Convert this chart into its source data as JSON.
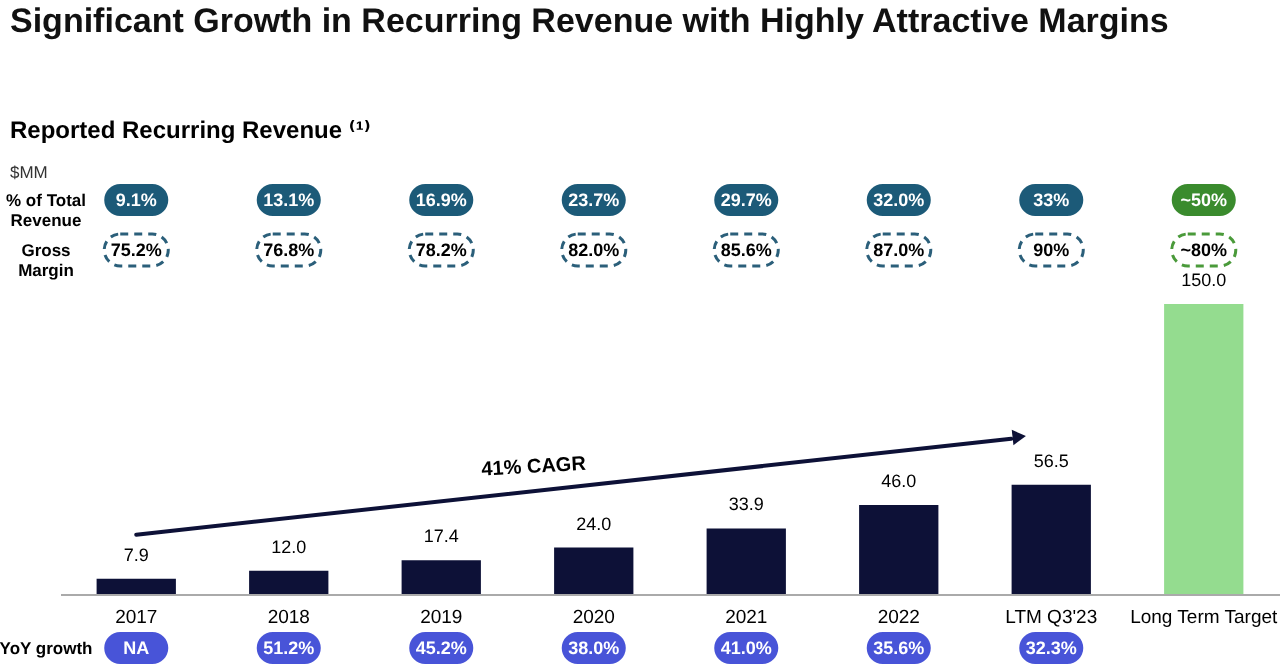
{
  "chart_data": {
    "type": "bar",
    "title": "Significant Growth in Recurring Revenue with Highly Attractive Margins",
    "subtitle": "Reported Recurring Revenue ⁽¹⁾",
    "categories": [
      "2017",
      "2018",
      "2019",
      "2020",
      "2021",
      "2022",
      "LTM Q3'23",
      "Long Term Target"
    ],
    "values": [
      7.9,
      12.0,
      17.4,
      24.0,
      33.9,
      46.0,
      56.5,
      150.0
    ],
    "value_labels": [
      "7.9",
      "12.0",
      "17.4",
      "24.0",
      "33.9",
      "46.0",
      "56.5",
      "150.0"
    ],
    "colors": [
      "#0d1137",
      "#0d1137",
      "#0d1137",
      "#0d1137",
      "#0d1137",
      "#0d1137",
      "#0d1137",
      "#94dc8f"
    ],
    "annotations": [
      "41% CAGR",
      "$MM",
      "% of Total Revenue",
      "9.1%",
      "13.1%",
      "16.9%",
      "23.7%",
      "29.7%",
      "32.0%",
      "33%",
      "~50%",
      "Gross Margin",
      "75.2%",
      "76.8%",
      "78.2%",
      "82.0%",
      "85.6%",
      "87.0%",
      "90%",
      "~80%",
      "YoY growth",
      "NA",
      "51.2%",
      "45.2%",
      "38.0%",
      "41.0%",
      "35.6%",
      "32.3%"
    ]
  }
}
